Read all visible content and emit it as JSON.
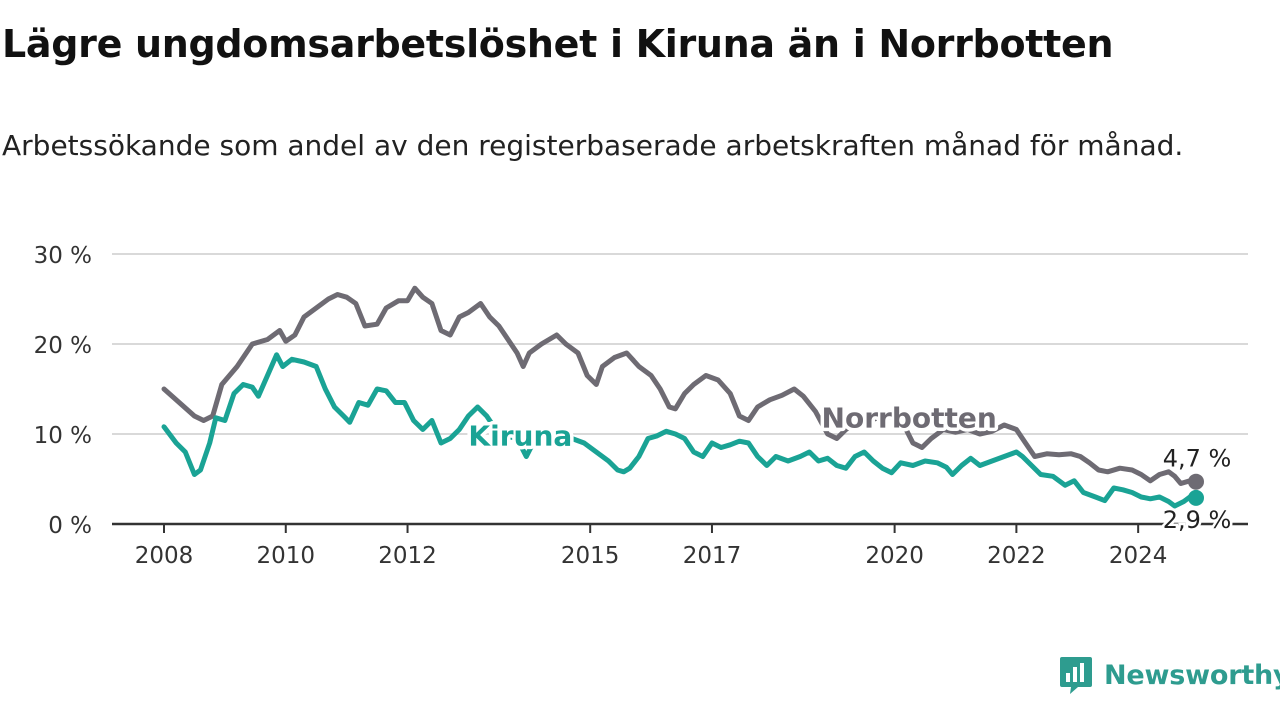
{
  "header": {
    "title": "Lägre ungdomsarbetslöshet i Kiruna än i Norrbotten",
    "subtitle": "Arbetssökande som andel av den registerbaserade arbetskraften månad för månad."
  },
  "brand": {
    "name": "Newsworthy",
    "color": "#2e9c8f",
    "icon": "newsworthy-logo-icon"
  },
  "colors": {
    "kiruna": "#1aa395",
    "norrbotten": "#6e6b73",
    "grid": "#d9d9d9",
    "axis": "#333333"
  },
  "chart_data": {
    "type": "line",
    "title": "Lägre ungdomsarbetslöshet i Kiruna än i Norrbotten",
    "xlabel": "",
    "ylabel": "",
    "xlim": [
      2008.0,
      2024.95
    ],
    "ylim": [
      0,
      30
    ],
    "yticks": [
      0,
      10,
      20,
      30
    ],
    "ytick_labels": [
      "0 %",
      "10 %",
      "20 %",
      "30 %"
    ],
    "xticks": [
      2008,
      2010,
      2012,
      2015,
      2017,
      2020,
      2022,
      2024
    ],
    "xtick_labels": [
      "2008",
      "2010",
      "2012",
      "2015",
      "2017",
      "2020",
      "2022",
      "2024"
    ],
    "grid": true,
    "legend": "inline labels",
    "series": [
      {
        "name": "Norrbotten",
        "end_label": "4,7 %",
        "points": [
          [
            2008.0,
            15.0
          ],
          [
            2008.25,
            13.5
          ],
          [
            2008.5,
            12.0
          ],
          [
            2008.65,
            11.5
          ],
          [
            2008.8,
            12.0
          ],
          [
            2008.95,
            15.5
          ],
          [
            2009.2,
            17.5
          ],
          [
            2009.45,
            20.0
          ],
          [
            2009.7,
            20.5
          ],
          [
            2009.9,
            21.5
          ],
          [
            2010.0,
            20.3
          ],
          [
            2010.15,
            21.0
          ],
          [
            2010.3,
            23.0
          ],
          [
            2010.5,
            24.0
          ],
          [
            2010.7,
            25.0
          ],
          [
            2010.85,
            25.5
          ],
          [
            2011.0,
            25.2
          ],
          [
            2011.15,
            24.5
          ],
          [
            2011.3,
            22.0
          ],
          [
            2011.5,
            22.2
          ],
          [
            2011.65,
            24.0
          ],
          [
            2011.85,
            24.8
          ],
          [
            2012.0,
            24.8
          ],
          [
            2012.12,
            26.2
          ],
          [
            2012.25,
            25.2
          ],
          [
            2012.4,
            24.5
          ],
          [
            2012.55,
            21.5
          ],
          [
            2012.7,
            21.0
          ],
          [
            2012.85,
            23.0
          ],
          [
            2013.0,
            23.5
          ],
          [
            2013.2,
            24.5
          ],
          [
            2013.35,
            23.0
          ],
          [
            2013.5,
            22.0
          ],
          [
            2013.65,
            20.5
          ],
          [
            2013.8,
            19.0
          ],
          [
            2013.9,
            17.5
          ],
          [
            2014.0,
            19.0
          ],
          [
            2014.2,
            20.0
          ],
          [
            2014.45,
            21.0
          ],
          [
            2014.6,
            20.0
          ],
          [
            2014.8,
            19.0
          ],
          [
            2014.95,
            16.5
          ],
          [
            2015.1,
            15.5
          ],
          [
            2015.2,
            17.5
          ],
          [
            2015.4,
            18.5
          ],
          [
            2015.6,
            19.0
          ],
          [
            2015.8,
            17.5
          ],
          [
            2016.0,
            16.5
          ],
          [
            2016.15,
            15.0
          ],
          [
            2016.3,
            13.0
          ],
          [
            2016.4,
            12.8
          ],
          [
            2016.55,
            14.5
          ],
          [
            2016.7,
            15.5
          ],
          [
            2016.9,
            16.5
          ],
          [
            2017.1,
            16.0
          ],
          [
            2017.3,
            14.5
          ],
          [
            2017.45,
            12.0
          ],
          [
            2017.6,
            11.5
          ],
          [
            2017.75,
            13.0
          ],
          [
            2017.95,
            13.8
          ],
          [
            2018.15,
            14.3
          ],
          [
            2018.35,
            15.0
          ],
          [
            2018.5,
            14.2
          ],
          [
            2018.7,
            12.5
          ],
          [
            2018.9,
            10.0
          ],
          [
            2019.05,
            9.5
          ],
          [
            2019.2,
            10.5
          ],
          [
            2019.4,
            11.3
          ],
          [
            2019.6,
            11.5
          ],
          [
            2019.8,
            12.0
          ],
          [
            2020.0,
            11.8
          ],
          [
            2020.15,
            11.0
          ],
          [
            2020.3,
            9.0
          ],
          [
            2020.45,
            8.5
          ],
          [
            2020.6,
            9.5
          ],
          [
            2020.8,
            10.5
          ],
          [
            2021.0,
            10.2
          ],
          [
            2021.2,
            10.5
          ],
          [
            2021.4,
            10.0
          ],
          [
            2021.6,
            10.3
          ],
          [
            2021.8,
            11.0
          ],
          [
            2022.0,
            10.5
          ],
          [
            2022.15,
            9.0
          ],
          [
            2022.3,
            7.5
          ],
          [
            2022.5,
            7.8
          ],
          [
            2022.7,
            7.7
          ],
          [
            2022.9,
            7.8
          ],
          [
            2023.05,
            7.5
          ],
          [
            2023.2,
            6.8
          ],
          [
            2023.35,
            6.0
          ],
          [
            2023.5,
            5.8
          ],
          [
            2023.7,
            6.2
          ],
          [
            2023.9,
            6.0
          ],
          [
            2024.05,
            5.5
          ],
          [
            2024.2,
            4.8
          ],
          [
            2024.35,
            5.5
          ],
          [
            2024.5,
            5.8
          ],
          [
            2024.6,
            5.3
          ],
          [
            2024.7,
            4.5
          ],
          [
            2024.85,
            4.8
          ],
          [
            2024.95,
            4.7
          ]
        ]
      },
      {
        "name": "Kiruna",
        "end_label": "2,9 %",
        "points": [
          [
            2008.0,
            10.8
          ],
          [
            2008.2,
            9.0
          ],
          [
            2008.35,
            8.0
          ],
          [
            2008.5,
            5.5
          ],
          [
            2008.6,
            6.0
          ],
          [
            2008.75,
            9.0
          ],
          [
            2008.85,
            11.8
          ],
          [
            2009.0,
            11.5
          ],
          [
            2009.15,
            14.5
          ],
          [
            2009.3,
            15.5
          ],
          [
            2009.45,
            15.2
          ],
          [
            2009.55,
            14.2
          ],
          [
            2009.7,
            16.5
          ],
          [
            2009.85,
            18.8
          ],
          [
            2009.95,
            17.5
          ],
          [
            2010.1,
            18.3
          ],
          [
            2010.3,
            18.0
          ],
          [
            2010.5,
            17.5
          ],
          [
            2010.65,
            15.0
          ],
          [
            2010.8,
            13.0
          ],
          [
            2010.95,
            12.0
          ],
          [
            2011.05,
            11.3
          ],
          [
            2011.2,
            13.5
          ],
          [
            2011.35,
            13.2
          ],
          [
            2011.5,
            15.0
          ],
          [
            2011.65,
            14.8
          ],
          [
            2011.8,
            13.5
          ],
          [
            2011.95,
            13.5
          ],
          [
            2012.1,
            11.5
          ],
          [
            2012.25,
            10.5
          ],
          [
            2012.4,
            11.5
          ],
          [
            2012.55,
            9.0
          ],
          [
            2012.7,
            9.5
          ],
          [
            2012.85,
            10.5
          ],
          [
            2013.0,
            12.0
          ],
          [
            2013.15,
            13.0
          ],
          [
            2013.3,
            12.0
          ],
          [
            2013.45,
            10.5
          ],
          [
            2013.6,
            9.8
          ],
          [
            2013.8,
            9.5
          ],
          [
            2013.95,
            7.5
          ],
          [
            2014.1,
            9.5
          ],
          [
            2014.3,
            9.8
          ],
          [
            2014.5,
            10.2
          ],
          [
            2014.7,
            9.5
          ],
          [
            2014.9,
            9.0
          ],
          [
            2015.1,
            8.0
          ],
          [
            2015.3,
            7.0
          ],
          [
            2015.45,
            6.0
          ],
          [
            2015.55,
            5.8
          ],
          [
            2015.65,
            6.2
          ],
          [
            2015.8,
            7.5
          ],
          [
            2015.95,
            9.5
          ],
          [
            2016.1,
            9.8
          ],
          [
            2016.25,
            10.3
          ],
          [
            2016.4,
            10.0
          ],
          [
            2016.55,
            9.5
          ],
          [
            2016.7,
            8.0
          ],
          [
            2016.85,
            7.5
          ],
          [
            2017.0,
            9.0
          ],
          [
            2017.15,
            8.5
          ],
          [
            2017.3,
            8.8
          ],
          [
            2017.45,
            9.2
          ],
          [
            2017.6,
            9.0
          ],
          [
            2017.75,
            7.5
          ],
          [
            2017.9,
            6.5
          ],
          [
            2018.05,
            7.5
          ],
          [
            2018.25,
            7.0
          ],
          [
            2018.45,
            7.5
          ],
          [
            2018.6,
            8.0
          ],
          [
            2018.75,
            7.0
          ],
          [
            2018.9,
            7.3
          ],
          [
            2019.05,
            6.5
          ],
          [
            2019.2,
            6.2
          ],
          [
            2019.35,
            7.5
          ],
          [
            2019.5,
            8.0
          ],
          [
            2019.65,
            7.0
          ],
          [
            2019.8,
            6.2
          ],
          [
            2019.95,
            5.7
          ],
          [
            2020.1,
            6.8
          ],
          [
            2020.3,
            6.5
          ],
          [
            2020.5,
            7.0
          ],
          [
            2020.7,
            6.8
          ],
          [
            2020.85,
            6.3
          ],
          [
            2020.95,
            5.5
          ],
          [
            2021.1,
            6.5
          ],
          [
            2021.25,
            7.3
          ],
          [
            2021.4,
            6.5
          ],
          [
            2021.6,
            7.0
          ],
          [
            2021.8,
            7.5
          ],
          [
            2022.0,
            8.0
          ],
          [
            2022.1,
            7.5
          ],
          [
            2022.25,
            6.5
          ],
          [
            2022.4,
            5.5
          ],
          [
            2022.6,
            5.3
          ],
          [
            2022.8,
            4.3
          ],
          [
            2022.95,
            4.8
          ],
          [
            2023.1,
            3.5
          ],
          [
            2023.3,
            3.0
          ],
          [
            2023.45,
            2.6
          ],
          [
            2023.6,
            4.0
          ],
          [
            2023.75,
            3.8
          ],
          [
            2023.9,
            3.5
          ],
          [
            2024.05,
            3.0
          ],
          [
            2024.2,
            2.8
          ],
          [
            2024.35,
            3.0
          ],
          [
            2024.5,
            2.5
          ],
          [
            2024.6,
            2.0
          ],
          [
            2024.75,
            2.5
          ],
          [
            2024.85,
            3.0
          ],
          [
            2024.95,
            2.9
          ]
        ]
      }
    ]
  }
}
